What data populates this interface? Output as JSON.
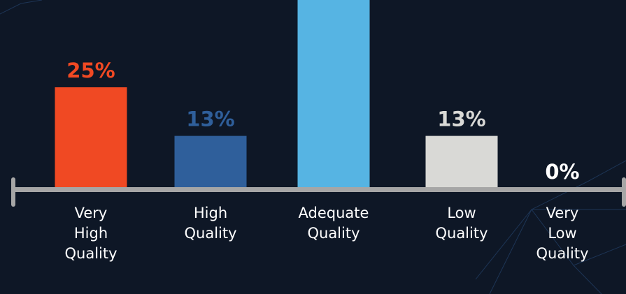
{
  "chart_data": {
    "type": "bar",
    "categories": [
      "Very High Quality",
      "High Quality",
      "Adequate Quality",
      "Low Quality",
      "Very Low Quality"
    ],
    "values": [
      25,
      13,
      49,
      13,
      0
    ],
    "value_labels": [
      "25%",
      "13%",
      null,
      "13%",
      "0%"
    ],
    "colors": [
      "#f04923",
      "#2f5f9b",
      "#56b4e3",
      "#d9d9d6",
      "#ffffff"
    ]
  }
}
